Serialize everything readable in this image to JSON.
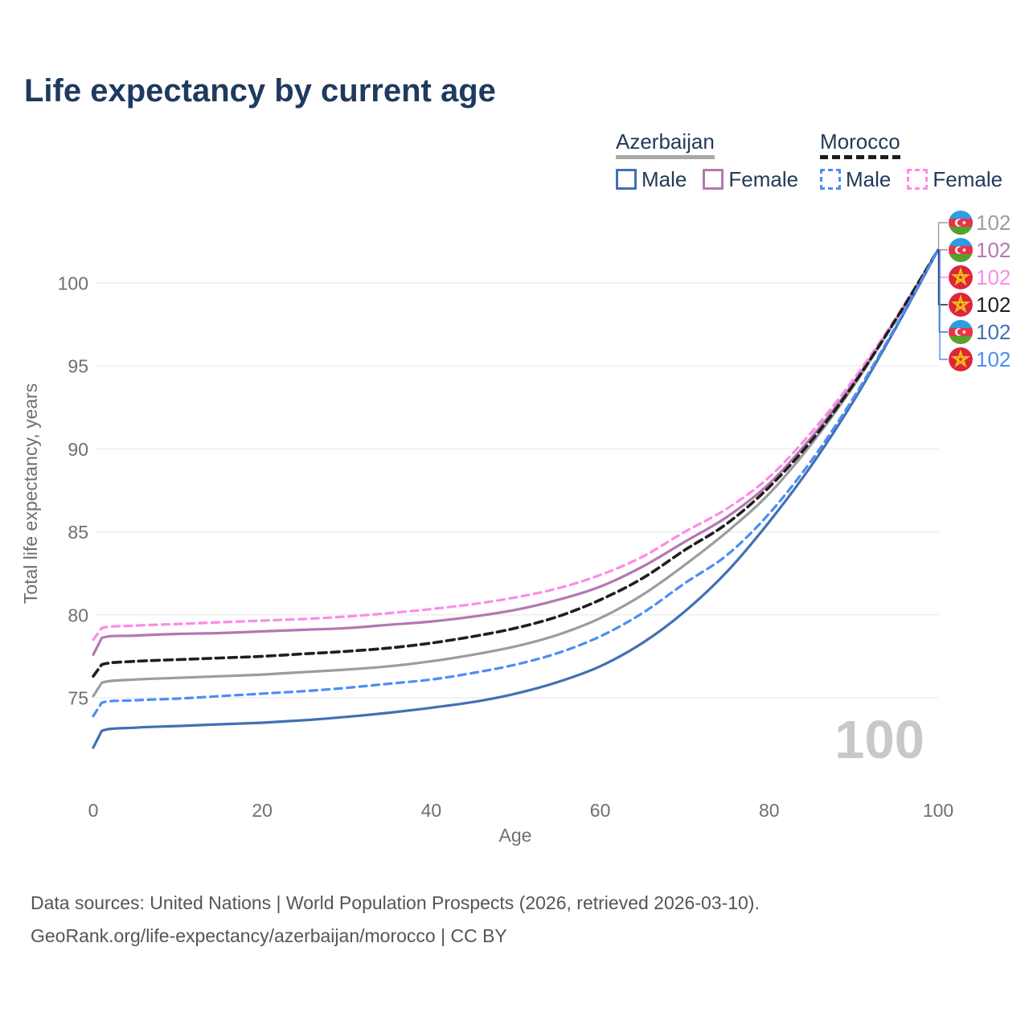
{
  "header": {
    "title": "Life expectancy by current age"
  },
  "legend": {
    "groups": [
      {
        "id": "azerbaijan",
        "label": "Azerbaijan",
        "line_style": "solid",
        "underline_color": "#a8a8a8",
        "items": [
          {
            "id": "az_male",
            "label": "Male",
            "color": "#4170b4",
            "dashed": false
          },
          {
            "id": "az_female",
            "label": "Female",
            "color": "#b378b1",
            "dashed": false
          }
        ]
      },
      {
        "id": "morocco",
        "label": "Morocco",
        "line_style": "dashed",
        "underline_color": "#1c1c1c",
        "items": [
          {
            "id": "ma_male",
            "label": "Male",
            "color": "#4c8df5",
            "dashed": true
          },
          {
            "id": "ma_female",
            "label": "Female",
            "color": "#fc8be7",
            "dashed": true
          }
        ]
      }
    ]
  },
  "chart_data": {
    "type": "line",
    "title": "Life expectancy by current age",
    "xlabel": "Age",
    "ylabel": "Total life expectancy, years",
    "xlim": [
      0,
      100
    ],
    "ylim": [
      70,
      104
    ],
    "x_ticks": [
      0,
      20,
      40,
      60,
      80,
      100
    ],
    "y_ticks": [
      75,
      80,
      85,
      90,
      95,
      100
    ],
    "grid": "horizontal",
    "watermark": "100",
    "legend_position": "top-right",
    "ages": [
      0,
      1,
      5,
      10,
      15,
      20,
      25,
      30,
      35,
      40,
      45,
      50,
      55,
      60,
      65,
      70,
      75,
      80,
      85,
      90,
      95,
      100
    ],
    "series": [
      {
        "id": "az_total",
        "name": "Azerbaijan — Total",
        "country": "azerbaijan",
        "sex": "total",
        "color": "#9c9c9c",
        "dashed": false,
        "label_row": 0,
        "end_label": "102",
        "values": [
          75.1,
          75.9,
          76.1,
          76.2,
          76.3,
          76.4,
          76.55,
          76.7,
          76.9,
          77.2,
          77.6,
          78.1,
          78.8,
          79.8,
          81.2,
          83.0,
          85.0,
          87.3,
          90.3,
          93.8,
          97.8,
          102
        ]
      },
      {
        "id": "az_female",
        "name": "Azerbaijan — Female",
        "country": "azerbaijan",
        "sex": "female",
        "color": "#b378b1",
        "dashed": false,
        "label_row": 1,
        "end_label": "102",
        "values": [
          77.6,
          78.6,
          78.75,
          78.85,
          78.9,
          79.0,
          79.1,
          79.2,
          79.4,
          79.6,
          79.9,
          80.3,
          80.9,
          81.7,
          82.9,
          84.4,
          85.9,
          87.9,
          90.7,
          94.0,
          97.8,
          102
        ]
      },
      {
        "id": "ma_female",
        "name": "Morocco — Female",
        "country": "morocco",
        "sex": "female",
        "color": "#fc8be7",
        "dashed": true,
        "label_row": 2,
        "end_label": "102",
        "values": [
          78.5,
          79.2,
          79.35,
          79.45,
          79.55,
          79.65,
          79.75,
          79.9,
          80.1,
          80.35,
          80.65,
          81.05,
          81.6,
          82.4,
          83.5,
          85.0,
          86.4,
          88.3,
          91.0,
          94.2,
          97.9,
          102
        ]
      },
      {
        "id": "ma_total",
        "name": "Morocco — Total",
        "country": "morocco",
        "sex": "total",
        "color": "#1f1f1f",
        "dashed": true,
        "label_row": 3,
        "end_label": "102",
        "values": [
          76.3,
          77.0,
          77.2,
          77.3,
          77.4,
          77.5,
          77.65,
          77.8,
          78.0,
          78.3,
          78.7,
          79.2,
          79.9,
          80.9,
          82.2,
          83.9,
          85.5,
          87.7,
          90.5,
          93.9,
          97.8,
          102
        ]
      },
      {
        "id": "az_male",
        "name": "Azerbaijan — Male",
        "country": "azerbaijan",
        "sex": "male",
        "color": "#4170b4",
        "dashed": false,
        "label_row": 4,
        "end_label": "102",
        "values": [
          72.0,
          73.0,
          73.2,
          73.3,
          73.4,
          73.5,
          73.65,
          73.85,
          74.1,
          74.4,
          74.75,
          75.25,
          75.95,
          76.9,
          78.3,
          80.2,
          82.6,
          85.6,
          89.0,
          92.9,
          97.3,
          102
        ]
      },
      {
        "id": "ma_male",
        "name": "Morocco — Male",
        "country": "morocco",
        "sex": "male",
        "color": "#4c8df5",
        "dashed": true,
        "label_row": 5,
        "end_label": "102",
        "values": [
          73.9,
          74.7,
          74.85,
          74.95,
          75.1,
          75.25,
          75.4,
          75.6,
          75.85,
          76.1,
          76.5,
          77.0,
          77.7,
          78.7,
          80.1,
          81.9,
          83.6,
          86.1,
          89.3,
          93.1,
          97.4,
          102
        ]
      }
    ],
    "flag_colors": {
      "azerbaijan": {
        "blue": "#2f9ce3",
        "red": "#e73347",
        "green": "#55a02f",
        "emblem": "#ffffff"
      },
      "morocco": {
        "red": "#e0243f",
        "star": "#f0c40f"
      }
    }
  },
  "footer": {
    "line1": "Data sources: United Nations | World Population Prospects (2026, retrieved 2026-03-10).",
    "line2": "GeoRank.org/life-expectancy/azerbaijan/morocco | CC BY"
  }
}
